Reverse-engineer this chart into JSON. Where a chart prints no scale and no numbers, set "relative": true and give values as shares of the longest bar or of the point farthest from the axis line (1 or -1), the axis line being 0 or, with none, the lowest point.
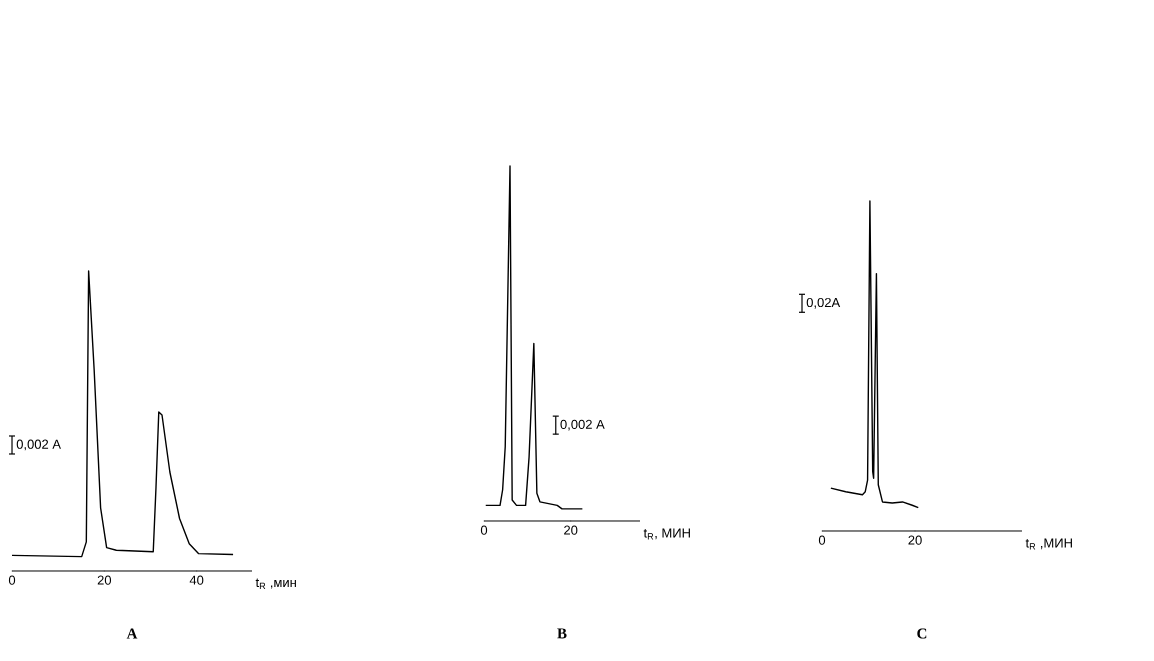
{
  "chart_data": [
    {
      "type": "line",
      "title": "A",
      "xlabel": "t$_{R}$ ,мин",
      "relative": true,
      "color": "#000000",
      "xlim": [
        0,
        52
      ],
      "xticks": [
        0,
        20,
        40
      ],
      "annotations": [
        "0,002 A"
      ],
      "x": [
        0,
        15.1,
        16.1,
        16.6,
        17.8,
        19.2,
        20.5,
        22.6,
        30.6,
        31.2,
        31.8,
        32.5,
        34.2,
        36.3,
        38.4,
        40.4,
        47.9
      ],
      "values": [
        0.052,
        0.048,
        0.097,
        1,
        0.67,
        0.21,
        0.078,
        0.069,
        0.064,
        0.28,
        0.53,
        0.52,
        0.33,
        0.175,
        0.091,
        0.058,
        0.055
      ]
    },
    {
      "type": "line",
      "title": "B",
      "xlabel": "t$_{R}$, МИН",
      "relative": true,
      "color": "#000000",
      "xlim": [
        0,
        36
      ],
      "xticks": [
        0,
        20
      ],
      "annotations": [
        "0,002 A"
      ],
      "x": [
        0.4,
        3.7,
        4.3,
        4.9,
        6.0,
        6.5,
        7.5,
        9.6,
        10.4,
        11.5,
        12.2,
        12.9,
        16.9,
        18.0,
        22.7
      ],
      "values": [
        0.044,
        0.044,
        0.088,
        0.21,
        1,
        0.059,
        0.044,
        0.044,
        0.18,
        0.5,
        0.078,
        0.054,
        0.044,
        0.034,
        0.034
      ]
    },
    {
      "type": "line",
      "title": "C",
      "xlabel": "t$_{R}$ ,МИН",
      "relative": true,
      "color": "#000000",
      "xlim": [
        0,
        43
      ],
      "xticks": [
        0,
        20
      ],
      "annotations": [
        "0,02A"
      ],
      "x": [
        1.9,
        5.1,
        8.7,
        9.3,
        9.8,
        10.3,
        10.9,
        11.1,
        11.7,
        12.1,
        13.0,
        15.1,
        17.3,
        19.4,
        20.7
      ],
      "values": [
        0.13,
        0.119,
        0.11,
        0.119,
        0.154,
        1,
        0.18,
        0.16,
        0.78,
        0.14,
        0.088,
        0.085,
        0.088,
        0.078,
        0.071
      ]
    }
  ]
}
